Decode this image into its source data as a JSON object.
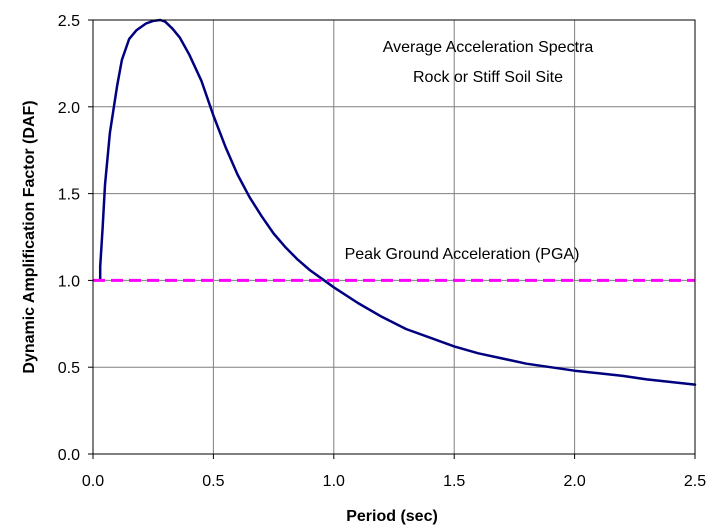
{
  "chart_data": {
    "type": "line",
    "title": "",
    "xlabel": "Period (sec)",
    "ylabel": "Dynamic Amplification Factor (DAF)",
    "xlim": [
      0,
      2.5
    ],
    "ylim": [
      0,
      2.5
    ],
    "x_ticks": [
      "0.0",
      "0.5",
      "1.0",
      "1.5",
      "2.0",
      "2.5"
    ],
    "y_ticks": [
      "0.0",
      "0.5",
      "1.0",
      "1.5",
      "2.0",
      "2.5"
    ],
    "grid": true,
    "annotations": [
      "Average Acceleration Spectra",
      "Rock or Stiff Soil Site",
      "Peak Ground Acceleration (PGA)"
    ],
    "series": [
      {
        "color": "#000080",
        "style": "solid",
        "x": [
          0.03,
          0.03,
          0.04,
          0.05,
          0.07,
          0.1,
          0.12,
          0.15,
          0.18,
          0.2,
          0.22,
          0.25,
          0.28,
          0.3,
          0.33,
          0.36,
          0.4,
          0.45,
          0.5,
          0.55,
          0.6,
          0.65,
          0.7,
          0.75,
          0.8,
          0.85,
          0.9,
          0.95,
          1.0,
          1.1,
          1.2,
          1.3,
          1.4,
          1.5,
          1.6,
          1.7,
          1.8,
          1.9,
          2.0,
          2.1,
          2.2,
          2.3,
          2.4,
          2.5
        ],
        "y": [
          1.0,
          1.08,
          1.3,
          1.55,
          1.85,
          2.12,
          2.27,
          2.39,
          2.44,
          2.46,
          2.48,
          2.495,
          2.5,
          2.49,
          2.45,
          2.4,
          2.3,
          2.15,
          1.95,
          1.77,
          1.61,
          1.48,
          1.37,
          1.27,
          1.19,
          1.12,
          1.06,
          1.01,
          0.96,
          0.87,
          0.79,
          0.72,
          0.67,
          0.62,
          0.58,
          0.55,
          0.52,
          0.5,
          0.48,
          0.465,
          0.45,
          0.43,
          0.415,
          0.4
        ]
      },
      {
        "color": "#ff00ff",
        "style": "dashed",
        "x": [
          0.0,
          2.5
        ],
        "y": [
          1.0,
          1.0
        ]
      }
    ]
  }
}
